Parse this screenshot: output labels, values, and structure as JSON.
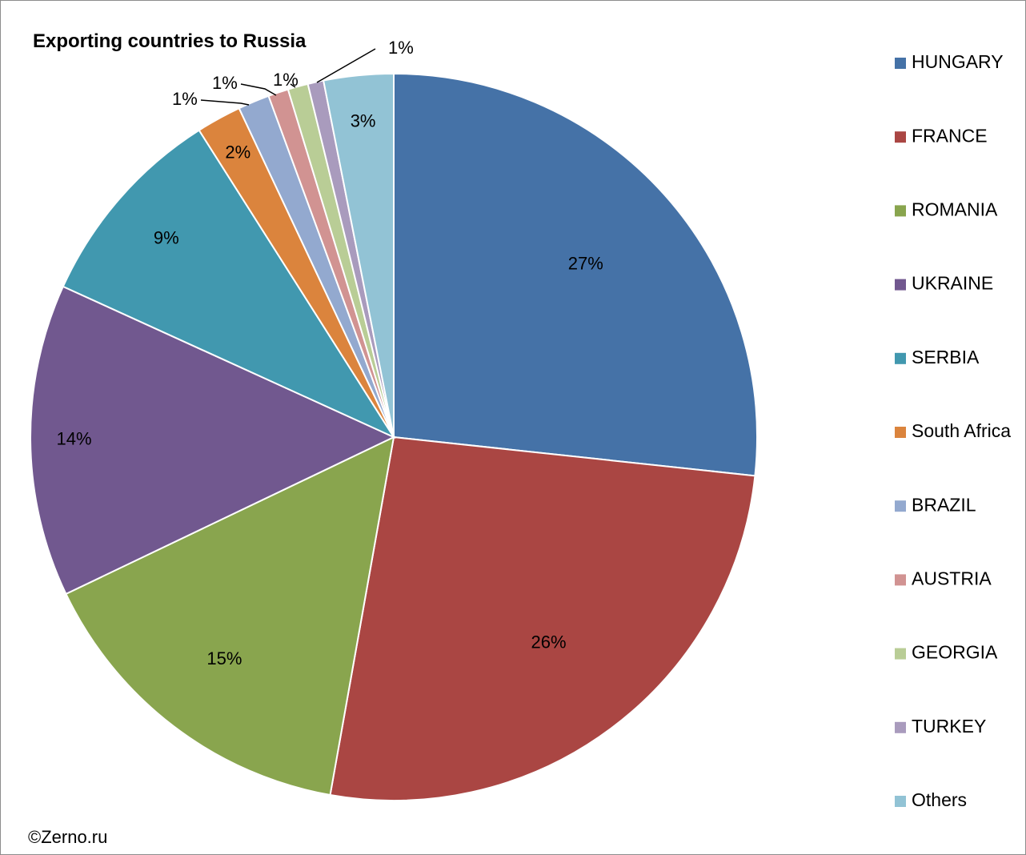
{
  "chart_data": {
    "type": "pie",
    "title": "Exporting countries to Russia",
    "credit": "©Zerno.ru",
    "legend_position": "right",
    "start_angle": "12 o'clock",
    "direction": "clockwise",
    "slices": [
      {
        "name": "HUNGARY",
        "value": 26.7,
        "label": "27%",
        "color": "#4572A7"
      },
      {
        "name": "FRANCE",
        "value": 26.1,
        "label": "26%",
        "color": "#AA4643"
      },
      {
        "name": "ROMANIA",
        "value": 15.1,
        "label": "15%",
        "color": "#89A54E"
      },
      {
        "name": "UKRAINE",
        "value": 13.9,
        "label": "14%",
        "color": "#71588F"
      },
      {
        "name": "SERBIA",
        "value": 9.2,
        "label": "9%",
        "color": "#4198AF"
      },
      {
        "name": "South Africa",
        "value": 2.0,
        "label": "2%",
        "color": "#DB843D"
      },
      {
        "name": "BRAZIL",
        "value": 1.4,
        "label": "1%",
        "color": "#93A9CF"
      },
      {
        "name": "AUSTRIA",
        "value": 0.9,
        "label": "1%",
        "color": "#D19392"
      },
      {
        "name": "GEORGIA",
        "value": 0.9,
        "label": "1%",
        "color": "#B9CD96"
      },
      {
        "name": "TURKEY",
        "value": 0.7,
        "label": "1%",
        "color": "#A99BBD"
      },
      {
        "name": "Others",
        "value": 3.1,
        "label": "3%",
        "color": "#92C3D5"
      }
    ]
  }
}
